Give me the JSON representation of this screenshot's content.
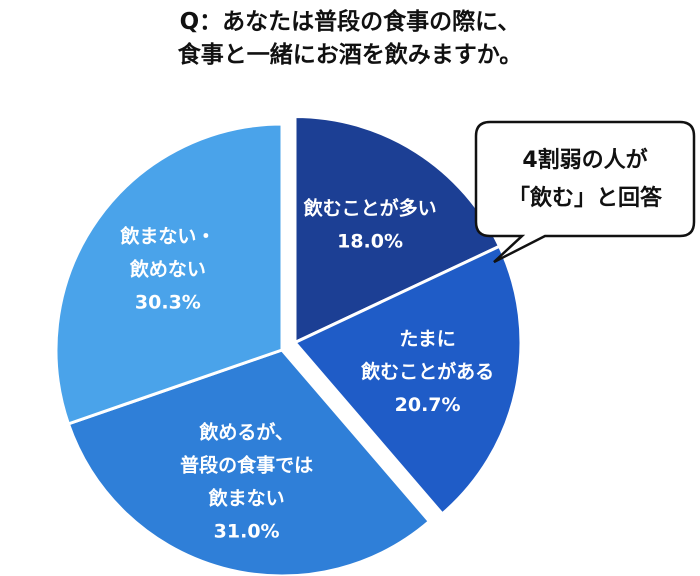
{
  "title_lines": [
    "Q：あなたは普段の食事の際に、",
    "食事と一緒にお酒を飲みますか。"
  ],
  "callout_lines": [
    "4割弱の人が",
    "「飲む」と回答"
  ],
  "chart_data": {
    "type": "pie",
    "title": "Q：あなたは普段の食事の際に、食事と一緒にお酒を飲みますか。",
    "slices": [
      {
        "label_lines": [
          "飲むことが多い"
        ],
        "value": 18.0,
        "value_label": "18.0%",
        "color": "#1c3f94",
        "exploded": true
      },
      {
        "label_lines": [
          "たまに",
          "飲むことがある"
        ],
        "value": 20.7,
        "value_label": "20.7%",
        "color": "#1f5cc7",
        "exploded": true
      },
      {
        "label_lines": [
          "飲めるが、",
          "普段の食事では",
          "飲まない"
        ],
        "value": 31.0,
        "value_label": "31.0%",
        "color": "#2f7fd8",
        "exploded": false
      },
      {
        "label_lines": [
          "飲まない・",
          "飲めない"
        ],
        "value": 30.3,
        "value_label": "30.3%",
        "color": "#4aa3ea",
        "exploded": false
      }
    ]
  }
}
